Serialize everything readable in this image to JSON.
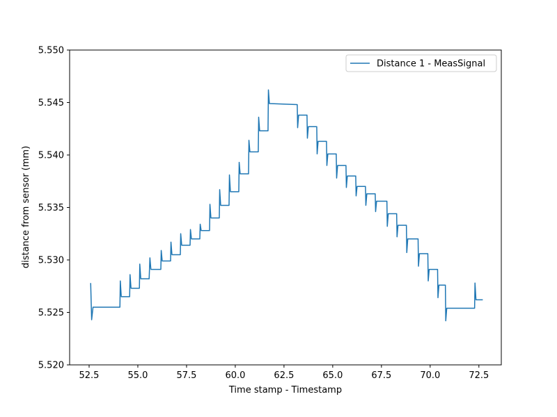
{
  "chart_data": {
    "type": "line",
    "xlabel": "Time stamp - Timestamp",
    "ylabel": "distance from sensor (mm)",
    "xlim": [
      51.5,
      73.65
    ],
    "ylim": [
      5.52,
      5.55
    ],
    "xticks": [
      {
        "value": 52.5,
        "label": "52.5"
      },
      {
        "value": 55,
        "label": "55.0"
      },
      {
        "value": 57.5,
        "label": "57.5"
      },
      {
        "value": 60,
        "label": "60.0"
      },
      {
        "value": 62.5,
        "label": "62.5"
      },
      {
        "value": 65,
        "label": "65.0"
      },
      {
        "value": 67.5,
        "label": "67.5"
      },
      {
        "value": 70,
        "label": "70.0"
      },
      {
        "value": 72.5,
        "label": "72.5"
      }
    ],
    "yticks": [
      {
        "value": 5.52,
        "label": "5.520"
      },
      {
        "value": 5.525,
        "label": "5.525"
      },
      {
        "value": 5.53,
        "label": "5.530"
      },
      {
        "value": 5.535,
        "label": "5.535"
      },
      {
        "value": 5.54,
        "label": "5.540"
      },
      {
        "value": 5.545,
        "label": "5.545"
      },
      {
        "value": 5.55,
        "label": "5.550"
      }
    ],
    "grid": false,
    "legend": "upper right",
    "series": [
      {
        "name": "Distance 1 - MeasSignal",
        "color": "#1f77b4",
        "x": [
          52.58,
          52.63,
          52.7,
          54.08,
          54.1,
          54.15,
          54.58,
          54.6,
          54.65,
          55.08,
          55.1,
          55.15,
          55.58,
          55.62,
          55.67,
          56.18,
          56.2,
          56.25,
          56.68,
          56.7,
          56.75,
          57.18,
          57.2,
          57.25,
          57.68,
          57.7,
          57.75,
          58.18,
          58.2,
          58.25,
          58.68,
          58.7,
          58.75,
          59.18,
          59.2,
          59.25,
          59.68,
          59.7,
          59.75,
          60.18,
          60.2,
          60.25,
          60.68,
          60.7,
          60.75,
          61.18,
          61.2,
          61.25,
          61.68,
          61.7,
          61.75,
          63.18,
          63.2,
          63.25,
          63.68,
          63.7,
          63.75,
          64.18,
          64.2,
          64.25,
          64.68,
          64.7,
          64.75,
          65.18,
          65.2,
          65.25,
          65.68,
          65.7,
          65.75,
          66.18,
          66.2,
          66.25,
          66.68,
          66.7,
          66.75,
          67.18,
          67.2,
          67.25,
          67.78,
          67.8,
          67.85,
          68.28,
          68.3,
          68.35,
          68.78,
          68.8,
          68.85,
          69.38,
          69.4,
          69.45,
          69.88,
          69.9,
          69.95,
          70.38,
          70.4,
          70.45,
          70.78,
          70.8,
          70.85,
          72.28,
          72.3,
          72.35,
          72.7
        ],
        "values": [
          5.5278,
          5.5243,
          5.5255,
          5.5255,
          5.528,
          5.5265,
          5.5265,
          5.5286,
          5.5273,
          5.5273,
          5.5296,
          5.5282,
          5.5282,
          5.5302,
          5.5291,
          5.5291,
          5.5309,
          5.5299,
          5.5299,
          5.5317,
          5.5305,
          5.5305,
          5.5325,
          5.5314,
          5.5314,
          5.5329,
          5.532,
          5.532,
          5.5334,
          5.5328,
          5.5328,
          5.5353,
          5.534,
          5.534,
          5.5367,
          5.5352,
          5.5352,
          5.5381,
          5.5365,
          5.5365,
          5.5393,
          5.5382,
          5.5382,
          5.5414,
          5.5403,
          5.5403,
          5.5436,
          5.5423,
          5.5423,
          5.5462,
          5.5449,
          5.5448,
          5.5426,
          5.5438,
          5.5438,
          5.5416,
          5.5427,
          5.5427,
          5.5401,
          5.5413,
          5.5413,
          5.539,
          5.5401,
          5.5401,
          5.5378,
          5.539,
          5.539,
          5.5369,
          5.538,
          5.538,
          5.5361,
          5.537,
          5.537,
          5.5352,
          5.5363,
          5.5363,
          5.5346,
          5.5356,
          5.5356,
          5.5332,
          5.5344,
          5.5344,
          5.5322,
          5.5333,
          5.5333,
          5.5307,
          5.532,
          5.532,
          5.5294,
          5.5306,
          5.5306,
          5.528,
          5.5291,
          5.5291,
          5.5264,
          5.5276,
          5.5276,
          5.5242,
          5.5254,
          5.5254,
          5.5278,
          5.5262,
          5.5262
        ]
      }
    ]
  }
}
